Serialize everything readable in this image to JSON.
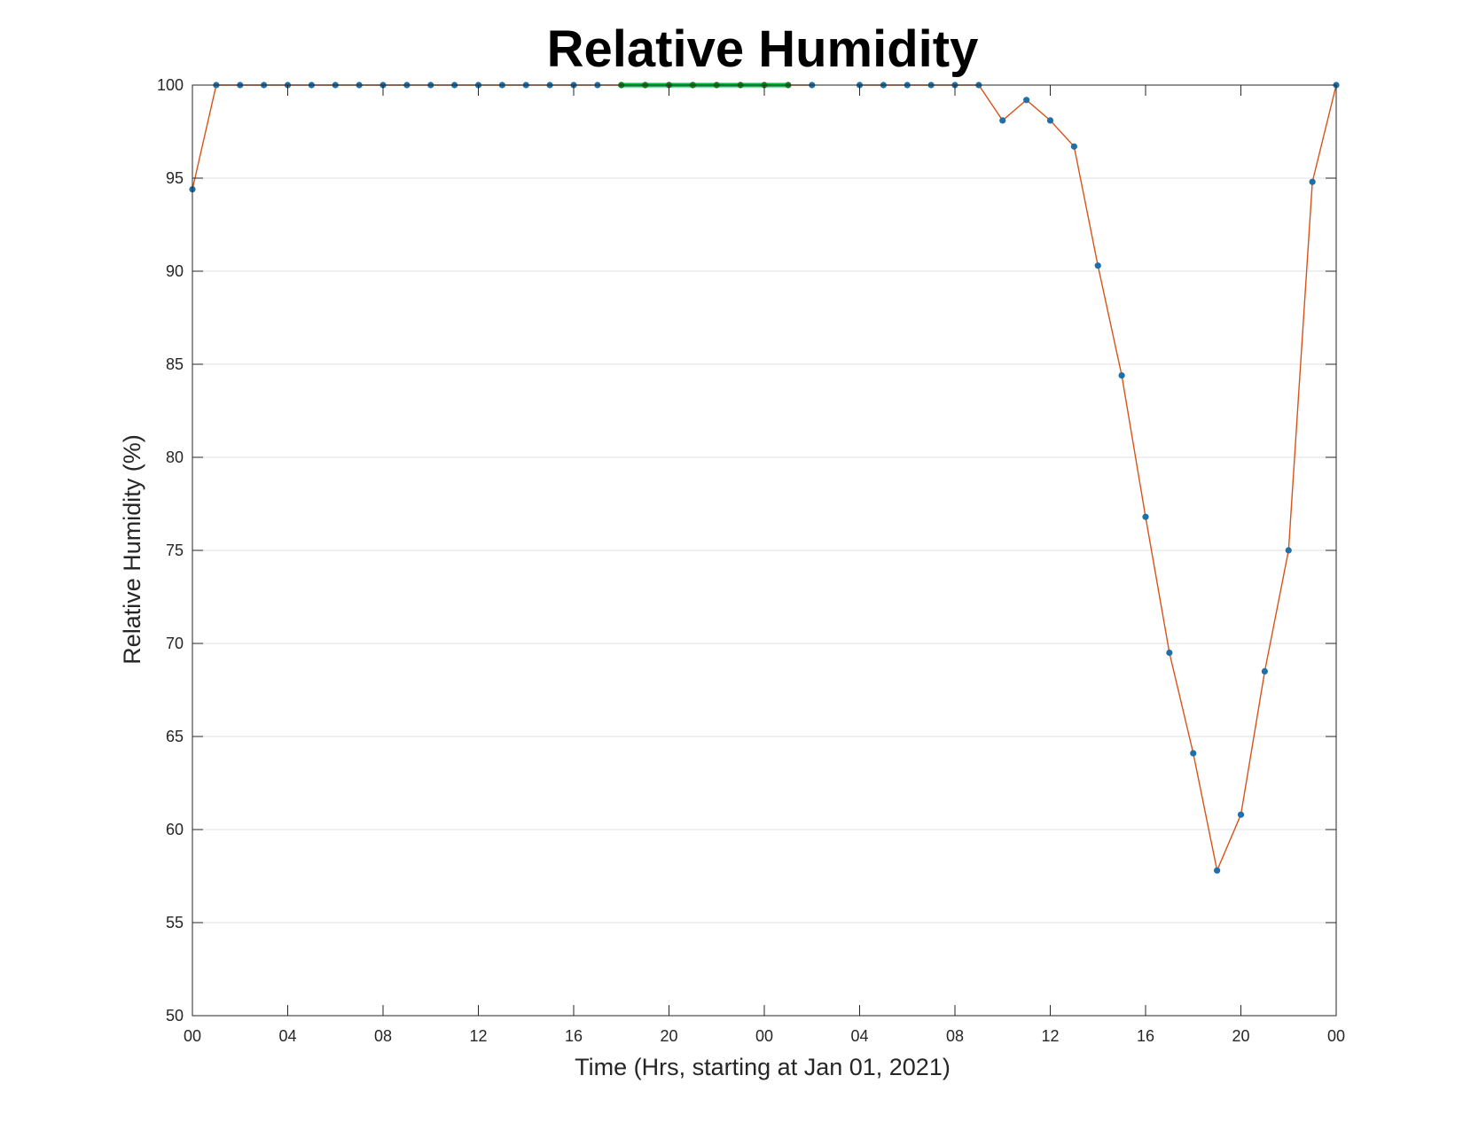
{
  "chart_data": {
    "type": "line",
    "title": "Relative Humidity",
    "xlabel": "Time (Hrs, starting at Jan 01, 2021)",
    "ylabel": "Relative Humidity (%)",
    "x_unit": "hours",
    "xlim": [
      0,
      48
    ],
    "ylim": [
      50,
      100
    ],
    "yticks": [
      50,
      55,
      60,
      65,
      70,
      75,
      80,
      85,
      90,
      95,
      100
    ],
    "xticks": [
      {
        "x": 0,
        "label": "00"
      },
      {
        "x": 4,
        "label": "04"
      },
      {
        "x": 8,
        "label": "08"
      },
      {
        "x": 12,
        "label": "12"
      },
      {
        "x": 16,
        "label": "16"
      },
      {
        "x": 20,
        "label": "20"
      },
      {
        "x": 24,
        "label": "00"
      },
      {
        "x": 28,
        "label": "04"
      },
      {
        "x": 32,
        "label": "08"
      },
      {
        "x": 36,
        "label": "12"
      },
      {
        "x": 40,
        "label": "16"
      },
      {
        "x": 44,
        "label": "20"
      },
      {
        "x": 48,
        "label": "00"
      }
    ],
    "grid": "horizontal",
    "colors": {
      "line": "#d95319",
      "marker": "#1f6fa8",
      "highlight_line": "#00c04b",
      "highlight_marker": "#0a7a1a",
      "grid": "#e2e2e2",
      "axis": "#262626"
    },
    "series": [
      {
        "x": [
          0,
          1,
          2,
          3,
          4,
          5,
          6,
          7,
          8,
          9,
          10,
          11,
          12,
          13,
          14,
          15,
          16,
          17,
          18,
          19,
          20,
          21,
          22,
          23,
          24,
          25,
          26,
          28,
          29,
          30,
          31,
          32,
          33,
          34,
          35,
          36,
          37,
          38,
          39,
          40,
          41,
          42,
          43,
          44,
          45,
          46,
          47,
          48
        ],
        "y": [
          94.4,
          100,
          100,
          100,
          100,
          100,
          100,
          100,
          100,
          100,
          100,
          100,
          100,
          100,
          100,
          100,
          100,
          100,
          100,
          100,
          100,
          100,
          100,
          100,
          100,
          100,
          100,
          100,
          100,
          100,
          100,
          100,
          100,
          98.1,
          99.2,
          98.1,
          96.7,
          90.3,
          84.4,
          76.8,
          69.5,
          64.1,
          57.8,
          60.8,
          68.5,
          75.0,
          94.8,
          100
        ]
      }
    ],
    "highlight": {
      "x": [
        18,
        19,
        20,
        21,
        22,
        23,
        24,
        25
      ],
      "y": [
        100,
        100,
        100,
        100,
        100,
        100,
        100,
        100
      ]
    }
  }
}
